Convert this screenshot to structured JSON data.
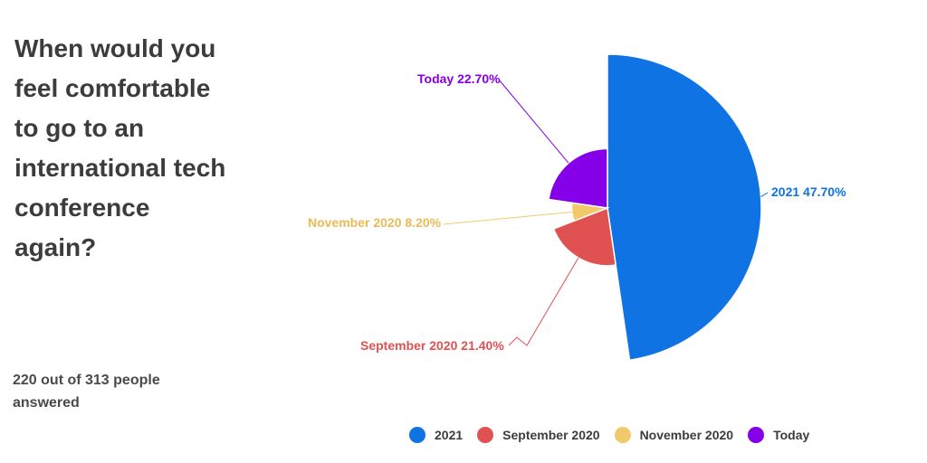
{
  "question": "When would you feel comfortable to go to an international tech conference again?",
  "responses_text": "220 out of 313 people answered",
  "chart_data": {
    "type": "pie",
    "variant": "polar-area",
    "title": "",
    "series": [
      {
        "name": "2021",
        "value": 47.7,
        "label": "2021 47.70%",
        "color": "#0f73e3"
      },
      {
        "name": "September 2020",
        "value": 21.4,
        "label": "September 2020 21.40%",
        "color": "#e05252"
      },
      {
        "name": "November 2020",
        "value": 8.2,
        "label": "November 2020 8.20%",
        "color": "#f2c96a"
      },
      {
        "name": "Today",
        "value": 22.7,
        "label": "Today 22.70%",
        "color": "#8500e8"
      }
    ],
    "legend_position": "bottom"
  }
}
